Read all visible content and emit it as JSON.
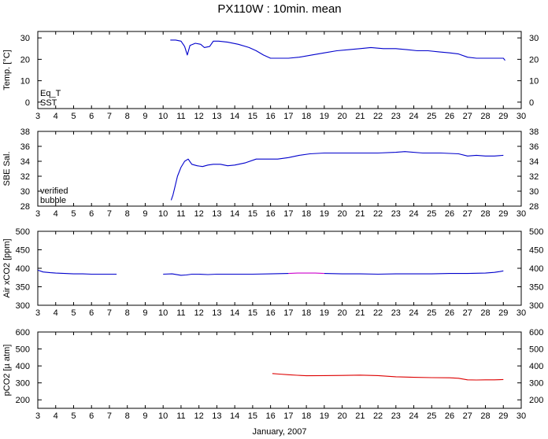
{
  "title": "PX110W : 10min. mean",
  "xlabel": "January, 2007",
  "x_ticks": [
    3,
    4,
    5,
    6,
    7,
    8,
    9,
    10,
    11,
    12,
    13,
    14,
    15,
    16,
    17,
    18,
    19,
    20,
    21,
    22,
    23,
    24,
    25,
    26,
    27,
    28,
    29,
    30
  ],
  "colors": {
    "red": "#dd0000",
    "blue": "#0000cc",
    "magenta": "#cc00cc"
  },
  "chart_data": [
    {
      "type": "line",
      "ylabel": "Temp. [°C]",
      "xlim": [
        3,
        30
      ],
      "ylim": [
        -3,
        33
      ],
      "y_ticks": [
        0,
        10,
        20,
        30
      ],
      "legend": [
        {
          "name": "Eq_T",
          "color": "#dd0000"
        },
        {
          "name": "SST",
          "color": "#0000cc"
        }
      ],
      "series": [
        {
          "name": "SST",
          "color": "#0000cc",
          "x": [
            10.4,
            10.7,
            11.0,
            11.2,
            11.35,
            11.5,
            11.8,
            12.1,
            12.3,
            12.6,
            12.8,
            13.1,
            13.6,
            14.2,
            14.8,
            15.2,
            15.6,
            16.0,
            16.5,
            17.0,
            17.6,
            18.3,
            19.0,
            19.7,
            20.4,
            21.0,
            21.6,
            22.3,
            23.0,
            23.6,
            24.2,
            24.8,
            25.4,
            26.0,
            26.5,
            27.0,
            27.5,
            28.0,
            28.5,
            29.0,
            29.1
          ],
          "y": [
            29,
            29,
            28.5,
            26,
            22,
            26.5,
            27.5,
            27,
            25.5,
            26,
            28.5,
            28.5,
            28,
            27,
            25.5,
            24,
            22,
            20.5,
            20.5,
            20.5,
            21,
            22,
            23,
            24,
            24.5,
            25,
            25.5,
            25,
            25,
            24.5,
            24,
            24,
            23.5,
            23,
            22.5,
            21,
            20.5,
            20.5,
            20.5,
            20.5,
            19.5
          ]
        }
      ]
    },
    {
      "type": "line",
      "ylabel": "SBE Sal.",
      "xlim": [
        3,
        30
      ],
      "ylim": [
        28,
        38
      ],
      "y_ticks": [
        28,
        30,
        32,
        34,
        36,
        38
      ],
      "legend": [
        {
          "name": "verified",
          "color": "#0000cc"
        },
        {
          "name": "bubble",
          "color": "#cc00cc"
        }
      ],
      "series": [
        {
          "name": "verified",
          "color": "#0000cc",
          "x": [
            10.45,
            10.55,
            10.65,
            10.8,
            11.0,
            11.2,
            11.4,
            11.6,
            11.9,
            12.2,
            12.5,
            12.8,
            13.2,
            13.6,
            14.0,
            14.6,
            15.2,
            15.8,
            16.4,
            17.0,
            17.6,
            18.2,
            19.0,
            20.0,
            21.0,
            22.0,
            23.0,
            23.5,
            24.5,
            25.5,
            26.5,
            27.0,
            27.5,
            28.0,
            28.5,
            29.0
          ],
          "y": [
            28.8,
            29.5,
            30.5,
            32.0,
            33.2,
            34.0,
            34.3,
            33.6,
            33.4,
            33.3,
            33.5,
            33.6,
            33.6,
            33.4,
            33.5,
            33.8,
            34.3,
            34.3,
            34.3,
            34.5,
            34.8,
            35.0,
            35.1,
            35.1,
            35.1,
            35.1,
            35.2,
            35.3,
            35.1,
            35.1,
            35.0,
            34.7,
            34.8,
            34.7,
            34.7,
            34.8
          ]
        }
      ]
    },
    {
      "type": "line",
      "ylabel": "Air xCO2 [ppm]",
      "xlim": [
        3,
        30
      ],
      "ylim": [
        300,
        500
      ],
      "y_ticks": [
        300,
        350,
        400,
        450,
        500
      ],
      "series": [
        {
          "name": "",
          "color": "#0000cc",
          "x": [
            3.0,
            3.3,
            3.7,
            4.0,
            4.5,
            5.0,
            5.5,
            6.0,
            6.5,
            7.0,
            7.4
          ],
          "y": [
            395,
            390,
            388,
            387,
            386,
            385,
            385,
            384,
            384,
            384,
            384
          ]
        },
        {
          "name": "",
          "color": "#0000cc",
          "x": [
            10.0,
            10.5,
            11.0,
            11.3,
            11.6,
            12.0,
            12.5,
            13.0,
            14.0,
            15.0,
            16.0,
            17.0
          ],
          "y": [
            384,
            385,
            381,
            382,
            384,
            384,
            383,
            384,
            384,
            384,
            385,
            386
          ]
        },
        {
          "name": "",
          "color": "#cc00cc",
          "x": [
            17.0,
            17.5,
            18.0,
            18.5,
            19.0
          ],
          "y": [
            386,
            387,
            387,
            387,
            386
          ]
        },
        {
          "name": "",
          "color": "#0000cc",
          "x": [
            19.0,
            20.0,
            21.0,
            22.0,
            23.0,
            24.0,
            25.0,
            26.0,
            27.0,
            28.0,
            28.5,
            28.8,
            29.0
          ],
          "y": [
            386,
            385,
            385,
            384,
            385,
            385,
            385,
            386,
            386,
            387,
            389,
            391,
            393
          ]
        }
      ]
    },
    {
      "type": "line",
      "ylabel": "pCO2 [µ atm]",
      "xlim": [
        3,
        30
      ],
      "ylim": [
        150,
        600
      ],
      "y_ticks": [
        200,
        300,
        400,
        500,
        600
      ],
      "series": [
        {
          "name": "",
          "color": "#dd0000",
          "x": [
            16.1,
            16.5,
            17.0,
            17.5,
            18.0,
            19.0,
            20.0,
            21.0,
            22.0,
            23.0,
            24.0,
            25.0,
            26.0,
            26.5,
            27.0,
            27.5,
            28.0,
            28.5,
            29.0
          ],
          "y": [
            355,
            352,
            348,
            345,
            342,
            343,
            344,
            346,
            343,
            336,
            333,
            331,
            330,
            327,
            318,
            317,
            318,
            318,
            320
          ]
        }
      ]
    }
  ]
}
